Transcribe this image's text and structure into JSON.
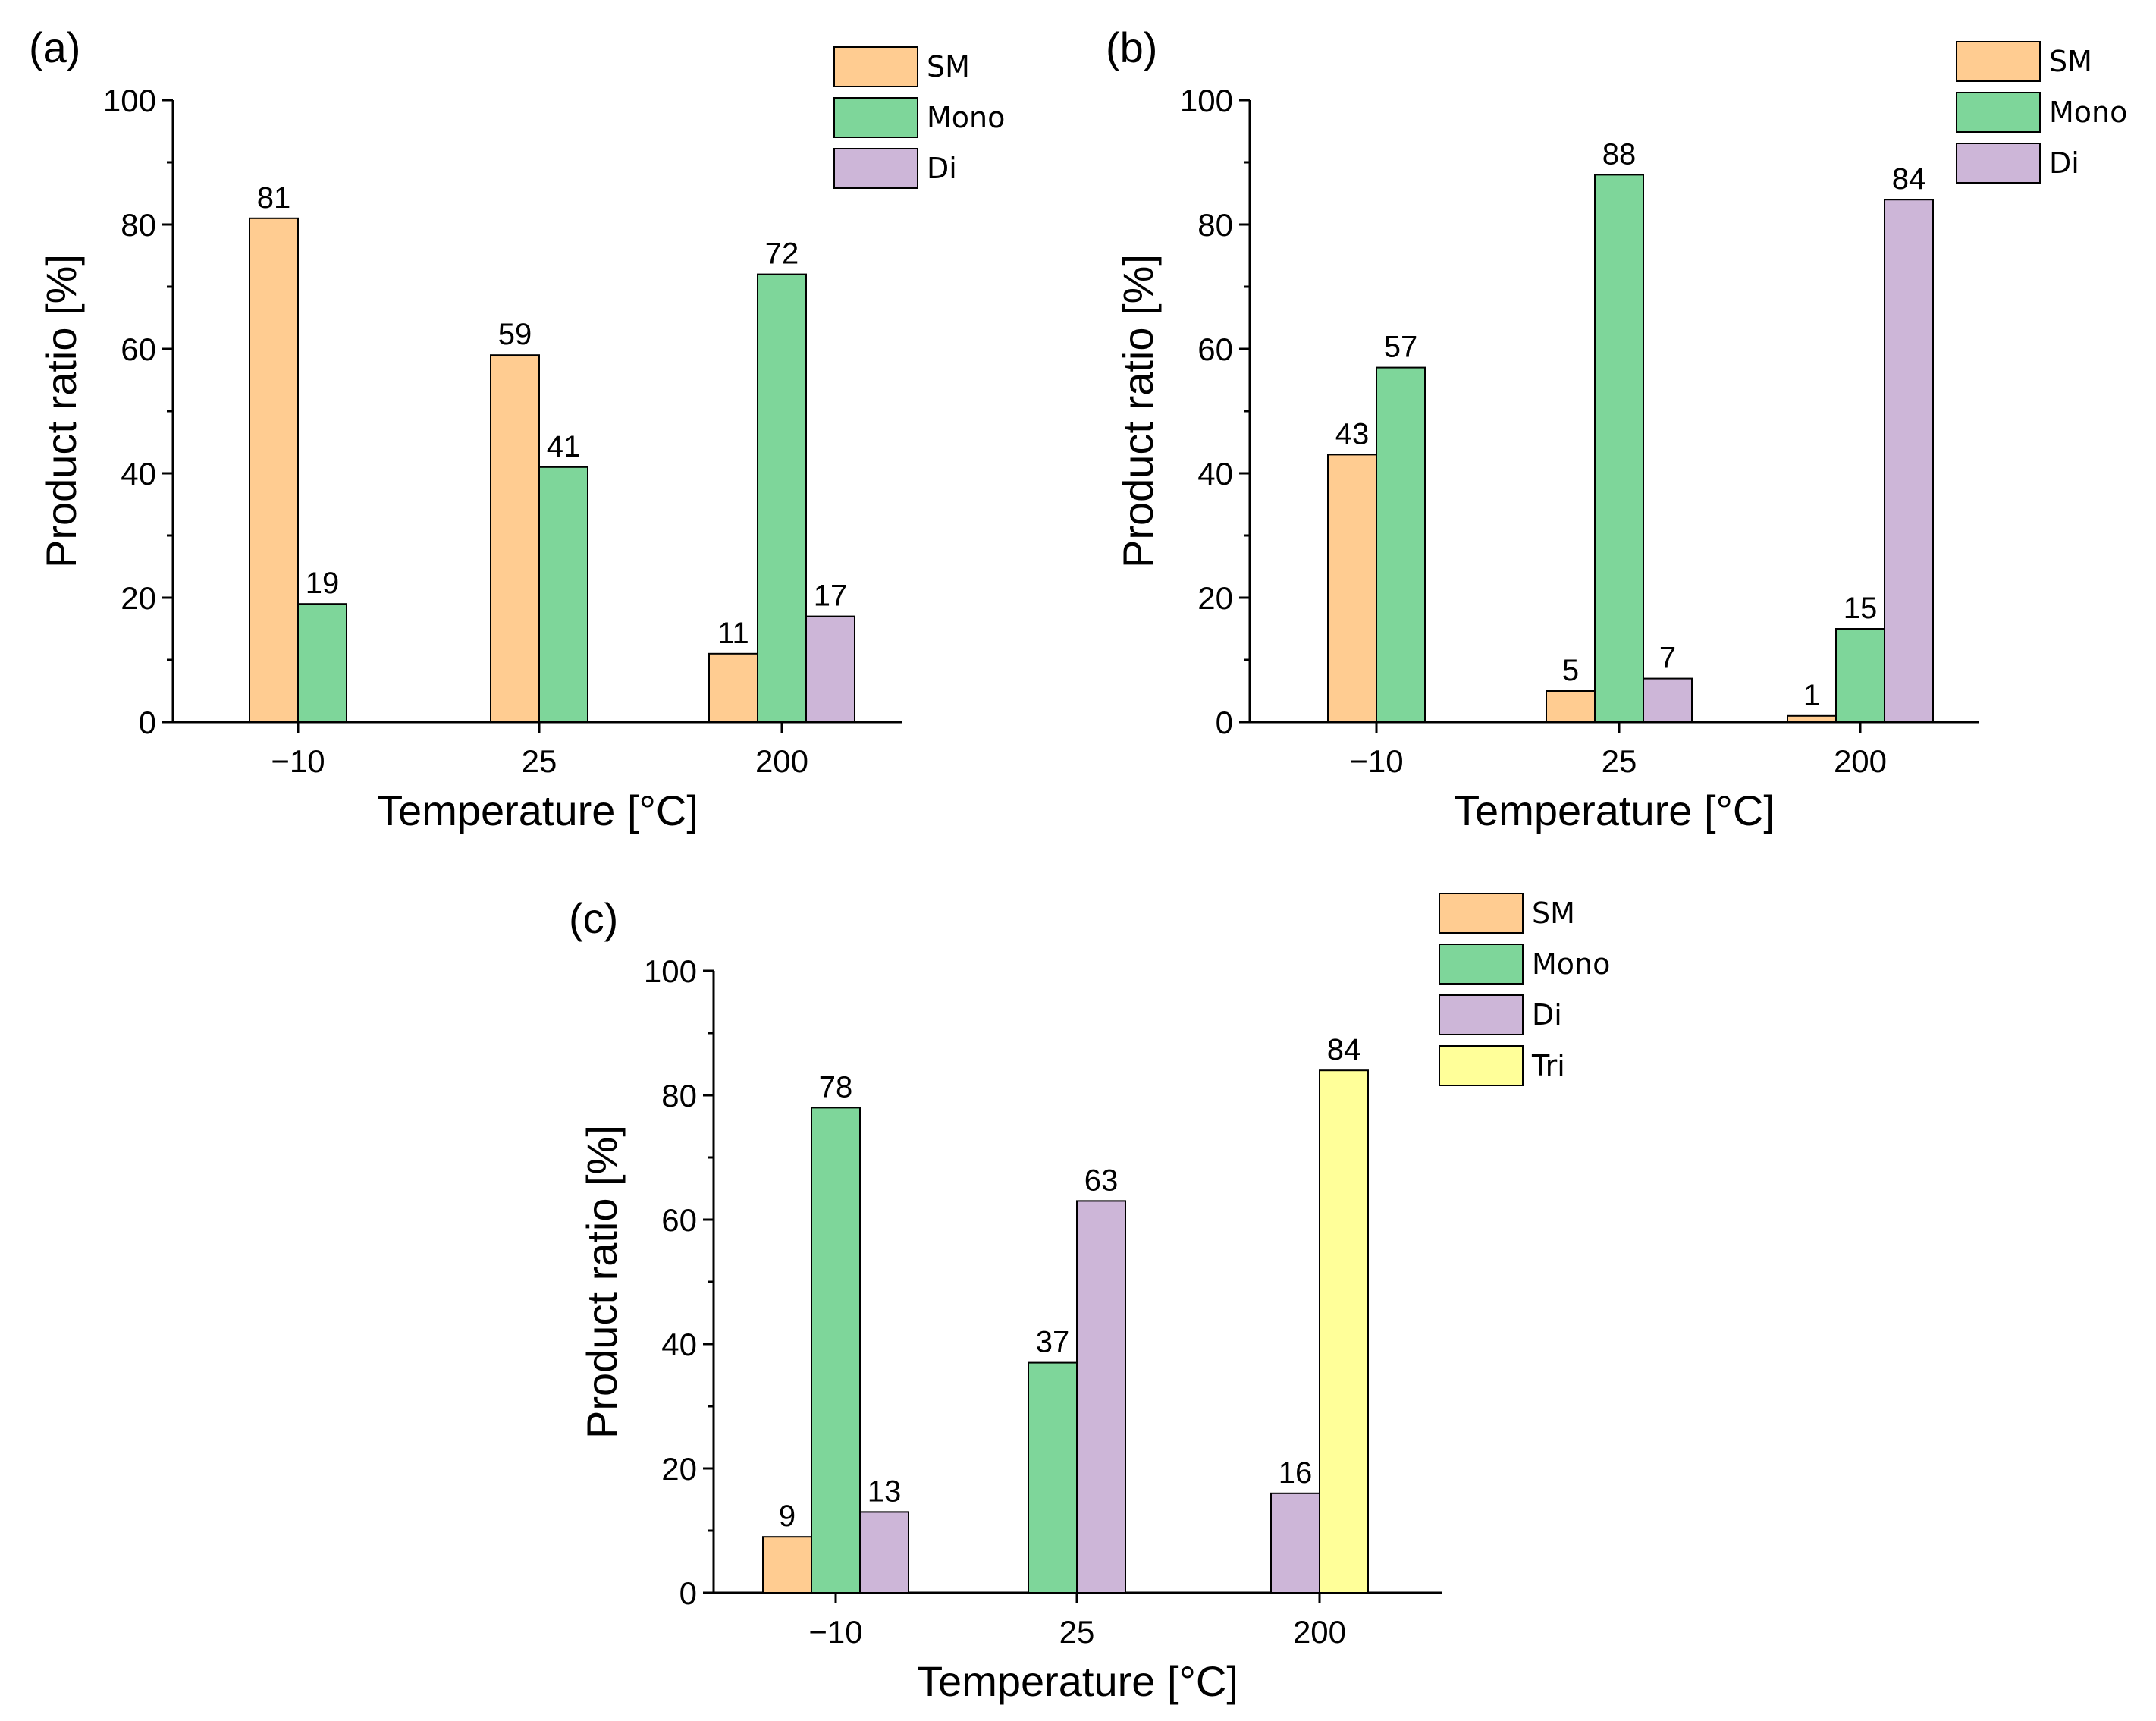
{
  "colors": {
    "SM": "#ffcc91",
    "Mono": "#7ed69a",
    "Di": "#cdb6d8",
    "Tri": "#ffff99"
  },
  "chart_data": [
    {
      "panel": "(a)",
      "type": "bar",
      "xlabel": "Temperature [°C]",
      "ylabel": "Product ratio [%]",
      "ylim": [
        0,
        100
      ],
      "yticks": [
        "0",
        "20",
        "40",
        "60",
        "80",
        "100"
      ],
      "categories": [
        "−10",
        "25",
        "200"
      ],
      "legend_position": "top-right",
      "series": [
        {
          "name": "SM",
          "values": [
            81,
            59,
            11
          ]
        },
        {
          "name": "Mono",
          "values": [
            19,
            41,
            72
          ]
        },
        {
          "name": "Di",
          "values": [
            null,
            null,
            17
          ]
        }
      ]
    },
    {
      "panel": "(b)",
      "type": "bar",
      "xlabel": "Temperature [°C]",
      "ylabel": "Product ratio [%]",
      "ylim": [
        0,
        100
      ],
      "yticks": [
        "0",
        "20",
        "40",
        "60",
        "80",
        "100"
      ],
      "categories": [
        "−10",
        "25",
        "200"
      ],
      "legend_position": "top-right",
      "series": [
        {
          "name": "SM",
          "values": [
            43,
            5,
            1
          ]
        },
        {
          "name": "Mono",
          "values": [
            57,
            88,
            15
          ]
        },
        {
          "name": "Di",
          "values": [
            null,
            7,
            84
          ]
        }
      ]
    },
    {
      "panel": "(c)",
      "type": "bar",
      "xlabel": "Temperature [°C]",
      "ylabel": "Product ratio [%]",
      "ylim": [
        0,
        100
      ],
      "yticks": [
        "0",
        "20",
        "40",
        "60",
        "80",
        "100"
      ],
      "categories": [
        "−10",
        "25",
        "200"
      ],
      "legend_position": "top-right",
      "series": [
        {
          "name": "SM",
          "values": [
            9,
            null,
            null
          ]
        },
        {
          "name": "Mono",
          "values": [
            78,
            37,
            null
          ]
        },
        {
          "name": "Di",
          "values": [
            13,
            63,
            16
          ]
        },
        {
          "name": "Tri",
          "values": [
            null,
            null,
            84
          ]
        }
      ]
    }
  ]
}
